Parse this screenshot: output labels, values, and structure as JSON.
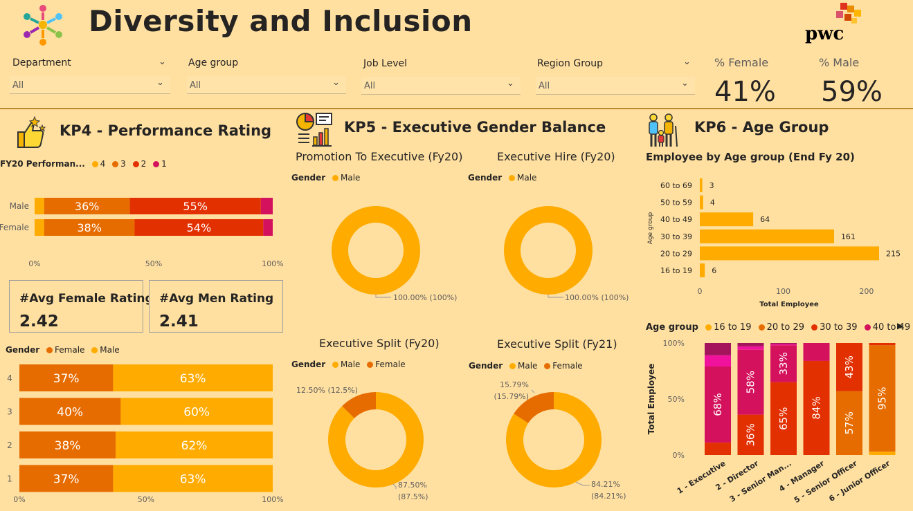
{
  "header": {
    "title": "Diversity and Inclusion",
    "brand": "pwc"
  },
  "filters": [
    {
      "label": "Department",
      "value": "All"
    },
    {
      "label": "Age group",
      "value": "All"
    },
    {
      "label": "Job Level",
      "value": "All"
    },
    {
      "label": "Region Group",
      "value": "All"
    }
  ],
  "kpis": {
    "female_label": "% Female",
    "female_value": "41%",
    "male_label": "% Male",
    "male_value": "59%"
  },
  "kp4": {
    "title": "KP4 - Performance Rating",
    "avg_female_label": "#Avg Female Rating",
    "avg_female_value": "2.42",
    "avg_men_label": "#Avg Men Rating",
    "avg_men_value": "2.41"
  },
  "kp5": {
    "title": "KP5 - Executive Gender Balance"
  },
  "kp6": {
    "title": "KP6 - Age Group"
  },
  "colors": {
    "r4": "#FFAB00",
    "r3": "#E66C00",
    "r2": "#E33000",
    "r1": "#D4115C",
    "male": "#FFAB00",
    "female": "#E66C00",
    "age16": "#FFAB00",
    "age20": "#E66C00",
    "age30": "#E33000",
    "age40": "#D4115C",
    "age50": "#F0129C",
    "age60": "#A3145D"
  },
  "chart_data": [
    {
      "id": "perf-rating-by-gender",
      "type": "bar",
      "orientation": "horizontal-stacked-100",
      "legend_title": "FY20 Performan...",
      "legend": [
        "4",
        "3",
        "2",
        "1"
      ],
      "categories": [
        "Male",
        "Female"
      ],
      "series": [
        {
          "name": "4",
          "values": [
            4,
            4
          ]
        },
        {
          "name": "3",
          "values": [
            36,
            38
          ]
        },
        {
          "name": "2",
          "values": [
            55,
            54
          ]
        },
        {
          "name": "1",
          "values": [
            5,
            4
          ]
        }
      ],
      "data_labels": [
        [
          "",
          "36%",
          "55%",
          ""
        ],
        [
          "",
          "38%",
          "54%",
          ""
        ]
      ],
      "x_ticks": [
        "0%",
        "50%",
        "100%"
      ],
      "xlim": [
        0,
        100
      ]
    },
    {
      "id": "gender-by-rating",
      "type": "bar",
      "orientation": "horizontal-stacked-100",
      "legend_title": "Gender",
      "legend": [
        "Female",
        "Male"
      ],
      "categories": [
        "4",
        "3",
        "2",
        "1"
      ],
      "series": [
        {
          "name": "Female",
          "values": [
            37,
            40,
            38,
            37
          ]
        },
        {
          "name": "Male",
          "values": [
            63,
            60,
            62,
            63
          ]
        }
      ],
      "x_ticks": [
        "0%",
        "50%",
        "100%"
      ],
      "xlim": [
        0,
        100
      ]
    },
    {
      "id": "promotion-to-executive",
      "type": "pie",
      "title": "Promotion To Executive (Fy20)",
      "legend_title": "Gender",
      "legend": [
        "Male"
      ],
      "slices": [
        {
          "name": "Male",
          "value": 100,
          "label": "100.00% (100%)"
        }
      ]
    },
    {
      "id": "executive-hire",
      "type": "pie",
      "title": "Executive Hire (Fy20)",
      "legend_title": "Gender",
      "legend": [
        "Male"
      ],
      "slices": [
        {
          "name": "Male",
          "value": 100,
          "label": "100.00% (100%)"
        }
      ]
    },
    {
      "id": "executive-split-fy20",
      "type": "pie",
      "title": "Executive Split (Fy20)",
      "legend_title": "Gender",
      "legend": [
        "Male",
        "Female"
      ],
      "slices": [
        {
          "name": "Male",
          "value": 87.5,
          "label": "87.50%",
          "label2": "(87.5%)"
        },
        {
          "name": "Female",
          "value": 12.5,
          "label": "12.50% (12.5%)",
          "label2": ""
        }
      ]
    },
    {
      "id": "executive-split-fy21",
      "type": "pie",
      "title": "Executive Split (Fy21)",
      "legend_title": "Gender",
      "legend": [
        "Male",
        "Female"
      ],
      "slices": [
        {
          "name": "Male",
          "value": 84.21,
          "label": "84.21%",
          "label2": "(84.21%)"
        },
        {
          "name": "Female",
          "value": 15.79,
          "label": "15.79%",
          "label2": "(15.79%)"
        }
      ]
    },
    {
      "id": "employee-by-age-group",
      "type": "bar",
      "orientation": "horizontal",
      "title": "Employee by Age group (End Fy 20)",
      "ylabel": "Age group",
      "xlabel": "Total Employee",
      "categories": [
        "60 to 69",
        "50 to 59",
        "40 to 49",
        "30 to 39",
        "20 to 29",
        "16 to 19"
      ],
      "values": [
        3,
        4,
        64,
        161,
        215,
        6
      ],
      "x_ticks": [
        0,
        100,
        200
      ],
      "xlim": [
        0,
        230
      ]
    },
    {
      "id": "age-group-by-job-level",
      "type": "bar",
      "orientation": "vertical-stacked-100",
      "legend_title": "Age group",
      "legend": [
        "16 to 19",
        "20 to 29",
        "30 to 39",
        "40 to 49"
      ],
      "ylabel": "Total Employee",
      "categories": [
        "1 - Executive",
        "2 - Director",
        "3 - Senior Man...",
        "4 - Manager",
        "5 - Senior Officer",
        "6 - Junior Officer"
      ],
      "series": [
        {
          "name": "16 to 19",
          "values": [
            0,
            0,
            0,
            0,
            0,
            3
          ]
        },
        {
          "name": "20 to 29",
          "values": [
            0,
            0,
            0,
            0,
            57,
            95
          ]
        },
        {
          "name": "30 to 39",
          "values": [
            11,
            36,
            65,
            84,
            43,
            2
          ]
        },
        {
          "name": "40 to 49",
          "values": [
            68,
            58,
            33,
            16,
            0,
            0
          ]
        },
        {
          "name": "50 to 59",
          "values": [
            10,
            3,
            1,
            0,
            0,
            0
          ]
        },
        {
          "name": "60 to 69",
          "values": [
            11,
            3,
            1,
            0,
            0,
            0
          ]
        }
      ],
      "data_labels": {
        "30 to 39": [
          "",
          "36%",
          "65%",
          "84%",
          "43%",
          ""
        ],
        "40 to 49": [
          "68%",
          "58%",
          "33%",
          "",
          "",
          ""
        ],
        "20 to 29": [
          "",
          "",
          "",
          "",
          "57%",
          "95%"
        ]
      },
      "y_ticks": [
        "0%",
        "50%",
        "100%"
      ],
      "ylim": [
        0,
        100
      ]
    }
  ]
}
